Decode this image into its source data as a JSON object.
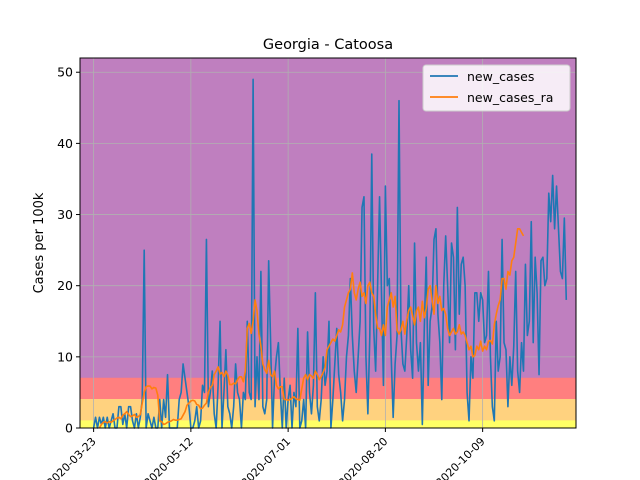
{
  "chart_data": {
    "type": "line",
    "title": "Georgia - Catoosa",
    "ylabel": "Cases per 100k",
    "xlabel": "",
    "x_start": "2020-03-16",
    "x_end": "2020-11-26",
    "ylim": [
      0,
      52
    ],
    "yticks": [
      0,
      10,
      20,
      30,
      40,
      50
    ],
    "xticks": [
      "2020-03-23",
      "2020-05-12",
      "2020-07-01",
      "2020-08-20",
      "2020-10-09"
    ],
    "grid": true,
    "legend": "top-right",
    "bands": [
      {
        "from": 0,
        "to": 1,
        "color": "#ffff66"
      },
      {
        "from": 1,
        "to": 4,
        "color": "#ffd27f"
      },
      {
        "from": 4,
        "to": 7,
        "color": "#ff7f7f"
      },
      {
        "from": 7,
        "to": 52,
        "color": "#bf7fbf"
      }
    ],
    "series": [
      {
        "name": "new_cases",
        "color": "#1f77b4",
        "start": "2020-03-23",
        "values": [
          0,
          1.5,
          0,
          1.5,
          0.5,
          1.5,
          0,
          1.5,
          0,
          1,
          2,
          0,
          0,
          3,
          3,
          0.5,
          2,
          0,
          3,
          3,
          1,
          0,
          2,
          0,
          1.5,
          4,
          25,
          0,
          2,
          1,
          0,
          1.5,
          0,
          0,
          4,
          0,
          4,
          1.5,
          7.5,
          0,
          0,
          0,
          0,
          0,
          4,
          5,
          9,
          7,
          5,
          3,
          0,
          0,
          1,
          3,
          0,
          1,
          6,
          5,
          26.5,
          3,
          5,
          8,
          2,
          0,
          6,
          15,
          0,
          5,
          11,
          3,
          2,
          0,
          3,
          9,
          5,
          4,
          0,
          5,
          4,
          15,
          5,
          4,
          49,
          3,
          10,
          4,
          22,
          3,
          2,
          4,
          23.5,
          12,
          0,
          7,
          10,
          12,
          5,
          0,
          7,
          0,
          4,
          6,
          0,
          5,
          3,
          14,
          0,
          1,
          4,
          0,
          13.5,
          5,
          2,
          6,
          19,
          3,
          1,
          4,
          10,
          6,
          8,
          15,
          0,
          4,
          9,
          14,
          7.5,
          5,
          1,
          4,
          10,
          13,
          21,
          13,
          8,
          5,
          10,
          15,
          31,
          32.5,
          10,
          2,
          13,
          38.5,
          14,
          8,
          20,
          32.5,
          19,
          6,
          34,
          20,
          21,
          10,
          1.5,
          9,
          13,
          46,
          14,
          9,
          8,
          13,
          20,
          11,
          7,
          26,
          12,
          8,
          12,
          0.5,
          14,
          24,
          6,
          15,
          17,
          26.5,
          28,
          16,
          12,
          4,
          20,
          27,
          20,
          12,
          26,
          24,
          11,
          31,
          16,
          23,
          24,
          20,
          5,
          1,
          10,
          7,
          19,
          19,
          15,
          19,
          18,
          12,
          13,
          22,
          10,
          3,
          1,
          15,
          8,
          10,
          26.5,
          12,
          11,
          3,
          10,
          6,
          11.5,
          22,
          8,
          5,
          12,
          8,
          23,
          13,
          15,
          29,
          12,
          24,
          19,
          7.5,
          23.5,
          24,
          20,
          21,
          33,
          29,
          35.5,
          28,
          34,
          28,
          22,
          21,
          29.5,
          18
        ]
      },
      {
        "name": "new_cases_ra",
        "color": "#ff7f0e",
        "start": "2020-03-26",
        "values": [
          0,
          0.5,
          0.8,
          0.9,
          0.7,
          0.9,
          0.8,
          1,
          1.2,
          1.4,
          1.5,
          1.3,
          1.8,
          2,
          2.3,
          1.9,
          1.6,
          1.7,
          1.9,
          1.5,
          1.6,
          1.9,
          3.5,
          5,
          5.8,
          5.9,
          5.9,
          5.5,
          5.7,
          5.6,
          4.6,
          1,
          0.9,
          0.5,
          0.6,
          0.8,
          0.9,
          1,
          1.2,
          1.1,
          1.1,
          1.2,
          1.3,
          1.8,
          2.3,
          3.2,
          3.5,
          3.8,
          3.9,
          3.8,
          3.3,
          3.2,
          2.7,
          2.8,
          3.2,
          3.5,
          5,
          5.7,
          6,
          7.5,
          8,
          8.6,
          7.6,
          7.8,
          7.2,
          8,
          7.4,
          6.1,
          6.1,
          6.3,
          6.2,
          6.8,
          7.2,
          7.2,
          6.5,
          8,
          14,
          14.7,
          13.3,
          15,
          18,
          16.5,
          13.2,
          11.5,
          9,
          8.2,
          7.7,
          9.5,
          7.5,
          7.2,
          8,
          6,
          5.5,
          5.8,
          5.8,
          4,
          4,
          3.9,
          4,
          4.2,
          4.4,
          4.1,
          4,
          3.9,
          5.5,
          7,
          7.5,
          6.8,
          7.5,
          7.3,
          7,
          8,
          7.5,
          6.8,
          7.2,
          7.8,
          8.5,
          11,
          11.5,
          12,
          12.5,
          12.2,
          13,
          13.8,
          13.5,
          14.5,
          17,
          18,
          19,
          19.5,
          21.8,
          19,
          18,
          19.5,
          20.5,
          18.5,
          19,
          17.5,
          20,
          20.5,
          19,
          18.5,
          16,
          14,
          14,
          13,
          14.5,
          13,
          17,
          18,
          19,
          17,
          18.5,
          13.8,
          13.2,
          13.8,
          15,
          13.2,
          15.2,
          16.5,
          17,
          15.8,
          14.5,
          16.5,
          17,
          15,
          17.8,
          15.5,
          16.8,
          19.5,
          20,
          18,
          16,
          20,
          17.5,
          18.5,
          16.5,
          16.8,
          16,
          14,
          13,
          13.5,
          14,
          13.2,
          13.5,
          14.5,
          13.2,
          13.5,
          13,
          12,
          11,
          11.5,
          10,
          10.2,
          11.5,
          11,
          12.2,
          10.8,
          11.5,
          11,
          12.2,
          12.3,
          11.8,
          14.5,
          16,
          17.2,
          18,
          21,
          21,
          19.5,
          22,
          21.5,
          23.5,
          24,
          26,
          28,
          28,
          27.5,
          27
        ]
      }
    ]
  }
}
